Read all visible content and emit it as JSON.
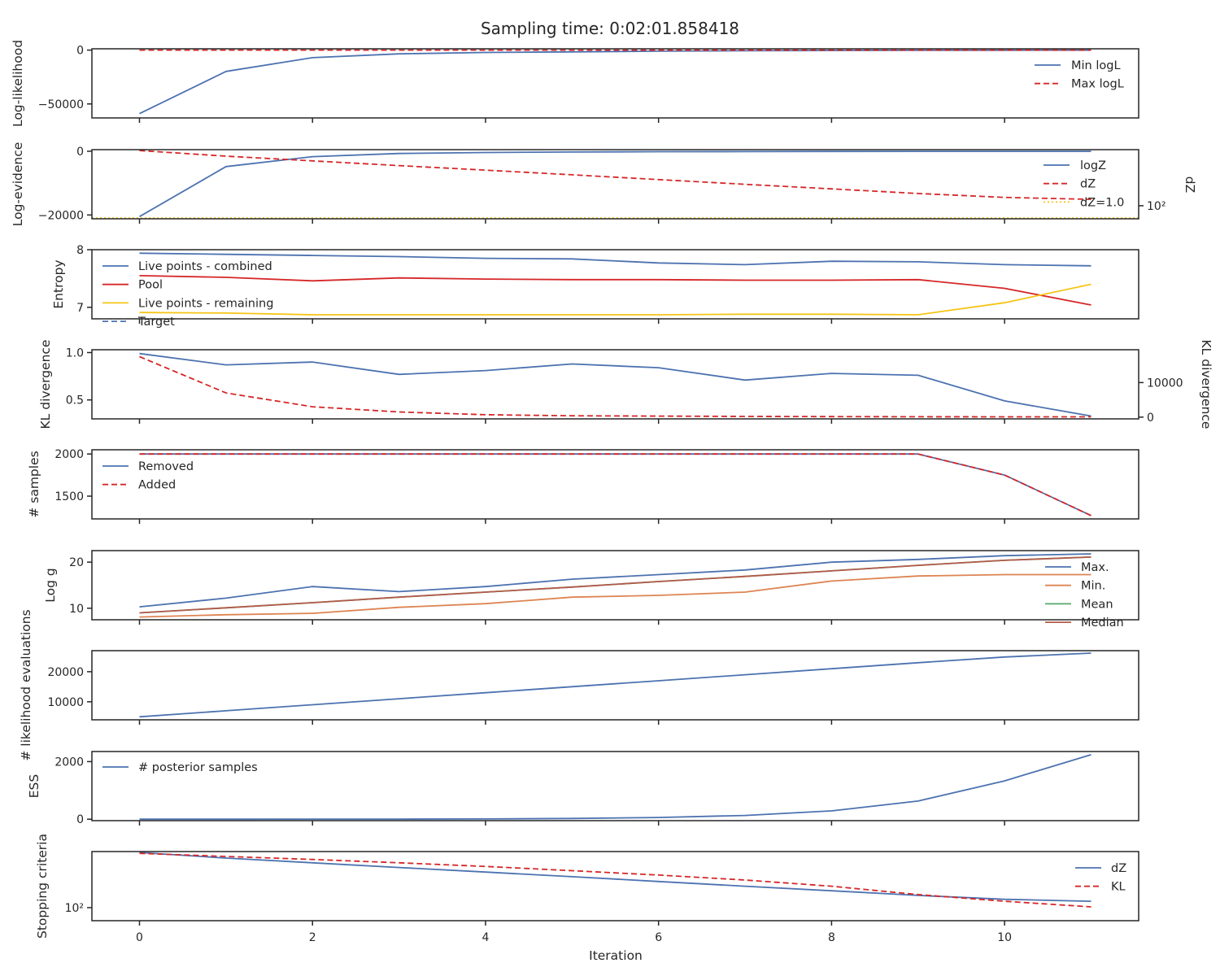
{
  "figure": {
    "title": "Sampling time: 0:02:01.858418",
    "xlabel": "Iteration",
    "colors": {
      "blue": "#4c72b0",
      "red": "#d62728",
      "gold": "#f5c518",
      "orange": "#dd8452",
      "green": "#55a868",
      "brown": "#b35a4a",
      "axis": "#262626"
    }
  },
  "chart_data": [
    {
      "type": "line",
      "ylabel": "Log-likelihood",
      "xlim": [
        -0.55,
        11.55
      ],
      "ylim": [
        -63000,
        1200
      ],
      "yticks": [
        0,
        -50000
      ],
      "ytick_labels": [
        "0",
        "−50000"
      ],
      "legend": "right",
      "series": [
        {
          "name": "Min logL",
          "color": "#4c72b0",
          "dash": "solid",
          "x": [
            0,
            1,
            2,
            3,
            4,
            5,
            6,
            7,
            8,
            9,
            10,
            11
          ],
          "values": [
            -59000,
            -19800,
            -7000,
            -3500,
            -2200,
            -1700,
            -1000,
            -600,
            -400,
            -250,
            -150,
            -100
          ]
        },
        {
          "name": "Max logL",
          "color": "#d62728",
          "dash": "dashed",
          "x": [
            0,
            1,
            2,
            3,
            4,
            5,
            6,
            7,
            8,
            9,
            10,
            11
          ],
          "values": [
            0,
            0,
            0,
            0,
            0,
            0,
            0,
            0,
            0,
            0,
            0,
            0
          ]
        }
      ]
    },
    {
      "type": "line",
      "ylabel": "Log-evidence",
      "ylabel_right": "dZ",
      "xlim": [
        -0.55,
        11.55
      ],
      "ylim": [
        -21200,
        500
      ],
      "yticks": [
        0,
        -20000
      ],
      "ytick_labels": [
        "0",
        "−20000"
      ],
      "right_scale": "log",
      "right_ylim": [
        20,
        100000
      ],
      "right_yticks": [
        100
      ],
      "right_ytick_labels": [
        "10²"
      ],
      "legend": "right",
      "series": [
        {
          "name": "logZ",
          "color": "#4c72b0",
          "dash": "solid",
          "axis": "left",
          "x": [
            0,
            1,
            2,
            3,
            4,
            5,
            6,
            7,
            8,
            9,
            10,
            11
          ],
          "values": [
            -20500,
            -4800,
            -1700,
            -700,
            -400,
            -250,
            -150,
            -100,
            -60,
            -40,
            -30,
            -25
          ]
        },
        {
          "name": "dZ",
          "color": "#d62728",
          "dash": "dashed",
          "axis": "right",
          "x": [
            0,
            1,
            2,
            3,
            4,
            5,
            6,
            7,
            8,
            9,
            10,
            11
          ],
          "values": [
            90000,
            45000,
            25000,
            14000,
            8000,
            4500,
            2500,
            1400,
            800,
            450,
            280,
            220
          ]
        },
        {
          "name": "dZ=1.0",
          "color": "#f5c518",
          "dash": "dotted",
          "axis": "right",
          "x": [
            -0.55,
            11.55
          ],
          "values": [
            22,
            22
          ]
        }
      ]
    },
    {
      "type": "line",
      "ylabel": "Entropy",
      "xlim": [
        -0.55,
        11.55
      ],
      "ylim": [
        6.8,
        8.0
      ],
      "yticks": [
        8,
        7
      ],
      "ytick_labels": [
        "8",
        "7"
      ],
      "legend": "top-left",
      "series": [
        {
          "name": "Live points - combined",
          "color": "#4c72b0",
          "dash": "solid",
          "x": [
            0,
            1,
            2,
            3,
            4,
            5,
            6,
            7,
            8,
            9,
            10,
            11
          ],
          "values": [
            7.94,
            7.92,
            7.9,
            7.88,
            7.85,
            7.84,
            7.77,
            7.74,
            7.8,
            7.79,
            7.74,
            7.72
          ]
        },
        {
          "name": "Pool",
          "color": "#d62728",
          "dash": "solid",
          "x": [
            0,
            1,
            2,
            3,
            4,
            5,
            6,
            7,
            8,
            9,
            10,
            11
          ],
          "values": [
            7.55,
            7.52,
            7.46,
            7.51,
            7.49,
            7.48,
            7.48,
            7.47,
            7.47,
            7.48,
            7.33,
            7.04
          ]
        },
        {
          "name": "Live points - remaining",
          "color": "#f5c518",
          "dash": "solid",
          "x": [
            0,
            1,
            2,
            3,
            4,
            5,
            6,
            7,
            8,
            9,
            10,
            11
          ],
          "values": [
            6.91,
            6.9,
            6.87,
            6.87,
            6.87,
            6.87,
            6.87,
            6.88,
            6.88,
            6.87,
            7.08,
            7.4
          ]
        },
        {
          "name": "Target",
          "color": "#4c72b0",
          "dash": "dashed",
          "x": [],
          "values": []
        }
      ]
    },
    {
      "type": "line",
      "ylabel": "KL divergence",
      "ylabel_right": "KL divergence",
      "xlim": [
        -0.55,
        11.55
      ],
      "ylim": [
        0.3,
        1.03
      ],
      "yticks": [
        1.0,
        0.5
      ],
      "ytick_labels": [
        "1.0",
        "0.5"
      ],
      "right_ylim": [
        -500,
        19500
      ],
      "right_yticks": [
        10000,
        0
      ],
      "right_ytick_labels": [
        "10000",
        "0"
      ],
      "series": [
        {
          "color": "#4c72b0",
          "dash": "solid",
          "axis": "left",
          "x": [
            0,
            1,
            2,
            3,
            4,
            5,
            6,
            7,
            8,
            9,
            10,
            11
          ],
          "values": [
            0.99,
            0.87,
            0.9,
            0.77,
            0.81,
            0.88,
            0.84,
            0.71,
            0.78,
            0.76,
            0.49,
            0.33
          ]
        },
        {
          "color": "#d62728",
          "dash": "dashed",
          "axis": "right",
          "x": [
            0,
            1,
            2,
            3,
            4,
            5,
            6,
            7,
            8,
            9,
            10,
            11
          ],
          "values": [
            17500,
            7000,
            3000,
            1500,
            700,
            400,
            300,
            200,
            150,
            120,
            100,
            100
          ]
        }
      ]
    },
    {
      "type": "line",
      "ylabel": "# samples",
      "xlim": [
        -0.55,
        11.55
      ],
      "ylim": [
        1230,
        2050
      ],
      "yticks": [
        2000,
        1500
      ],
      "ytick_labels": [
        "2000",
        "1500"
      ],
      "legend": "top-left",
      "series": [
        {
          "name": "Removed",
          "color": "#4c72b0",
          "dash": "solid",
          "x": [
            0,
            1,
            2,
            3,
            4,
            5,
            6,
            7,
            8,
            9,
            10,
            11
          ],
          "values": [
            2000,
            2000,
            2000,
            2000,
            2000,
            2000,
            2000,
            2000,
            2000,
            2000,
            1750,
            1270
          ]
        },
        {
          "name": "Added",
          "color": "#d62728",
          "dash": "dashed",
          "x": [
            0,
            1,
            2,
            3,
            4,
            5,
            6,
            7,
            8,
            9,
            10,
            11
          ],
          "values": [
            2000,
            2000,
            2000,
            2000,
            2000,
            2000,
            2000,
            2000,
            2000,
            2000,
            1750,
            1270
          ]
        }
      ]
    },
    {
      "type": "line",
      "ylabel": "Log g",
      "xlim": [
        -0.55,
        11.55
      ],
      "ylim": [
        7.5,
        22.5
      ],
      "yticks": [
        20,
        10
      ],
      "ytick_labels": [
        "20",
        "10"
      ],
      "legend": "right",
      "series": [
        {
          "name": "Max.",
          "color": "#4c72b0",
          "dash": "solid",
          "x": [
            0,
            1,
            2,
            3,
            4,
            5,
            6,
            7,
            8,
            9,
            10,
            11
          ],
          "values": [
            10.3,
            12.2,
            14.7,
            13.6,
            14.7,
            16.3,
            17.3,
            18.3,
            20.0,
            20.6,
            21.4,
            21.8
          ]
        },
        {
          "name": "Min.",
          "color": "#dd8452",
          "dash": "solid",
          "x": [
            0,
            1,
            2,
            3,
            4,
            5,
            6,
            7,
            8,
            9,
            10,
            11
          ],
          "values": [
            8.1,
            8.6,
            8.9,
            10.2,
            11.0,
            12.4,
            12.8,
            13.5,
            15.9,
            17.0,
            17.3,
            17.3
          ]
        },
        {
          "name": "Mean",
          "color": "#55a868",
          "dash": "solid",
          "x": [
            0,
            1,
            2,
            3,
            4,
            5,
            6,
            7,
            8,
            9,
            10,
            11
          ],
          "values": [
            9.0,
            10.1,
            11.2,
            12.4,
            13.5,
            14.6,
            15.8,
            16.9,
            18.1,
            19.3,
            20.4,
            21.1
          ]
        },
        {
          "name": "Median",
          "color": "#b35a4a",
          "dash": "solid",
          "x": [
            0,
            1,
            2,
            3,
            4,
            5,
            6,
            7,
            8,
            9,
            10,
            11
          ],
          "values": [
            9.0,
            10.1,
            11.2,
            12.4,
            13.5,
            14.6,
            15.8,
            16.9,
            18.1,
            19.3,
            20.4,
            21.1
          ]
        }
      ]
    },
    {
      "type": "line",
      "ylabel": "# likelihood evaluations",
      "xlim": [
        -0.55,
        11.55
      ],
      "ylim": [
        4000,
        27000
      ],
      "yticks": [
        20000,
        10000
      ],
      "ytick_labels": [
        "20000",
        "10000"
      ],
      "series": [
        {
          "color": "#4c72b0",
          "dash": "solid",
          "x": [
            0,
            1,
            2,
            3,
            4,
            5,
            6,
            7,
            8,
            9,
            10,
            11
          ],
          "values": [
            5000,
            7000,
            9000,
            11000,
            13000,
            15000,
            17000,
            19000,
            21000,
            23000,
            24900,
            26200
          ]
        }
      ]
    },
    {
      "type": "line",
      "ylabel": "ESS",
      "xlim": [
        -0.55,
        11.55
      ],
      "ylim": [
        -50,
        2350
      ],
      "yticks": [
        2000,
        0
      ],
      "ytick_labels": [
        "2000",
        "0"
      ],
      "legend": "top-left",
      "series": [
        {
          "name": "# posterior samples",
          "color": "#4c72b0",
          "dash": "solid",
          "x": [
            0,
            1,
            2,
            3,
            4,
            5,
            6,
            7,
            8,
            9,
            10,
            11
          ],
          "values": [
            1,
            2,
            3,
            5,
            10,
            25,
            60,
            130,
            290,
            630,
            1330,
            2240
          ]
        }
      ]
    },
    {
      "type": "line",
      "ylabel": "Stopping criteria",
      "scale": "log",
      "xlim": [
        -0.55,
        11.55
      ],
      "ylim": [
        20,
        100000
      ],
      "yticks": [
        100
      ],
      "ytick_labels": [
        "10²"
      ],
      "xticks": [
        0,
        2,
        4,
        6,
        8,
        10
      ],
      "xtick_labels": [
        "0",
        "2",
        "4",
        "6",
        "8",
        "10"
      ],
      "legend": "right",
      "series": [
        {
          "name": "dZ",
          "color": "#4c72b0",
          "dash": "solid",
          "x": [
            0,
            1,
            2,
            3,
            4,
            5,
            6,
            7,
            8,
            9,
            10,
            11
          ],
          "values": [
            90000,
            45000,
            25000,
            14000,
            8000,
            4500,
            2500,
            1400,
            800,
            450,
            280,
            220
          ]
        },
        {
          "name": "KL",
          "color": "#d62728",
          "dash": "dashed",
          "x": [
            0,
            1,
            2,
            3,
            4,
            5,
            6,
            7,
            8,
            9,
            10,
            11
          ],
          "values": [
            80000,
            55000,
            38000,
            25000,
            16000,
            9500,
            5500,
            3000,
            1400,
            500,
            220,
            110
          ]
        }
      ]
    }
  ]
}
